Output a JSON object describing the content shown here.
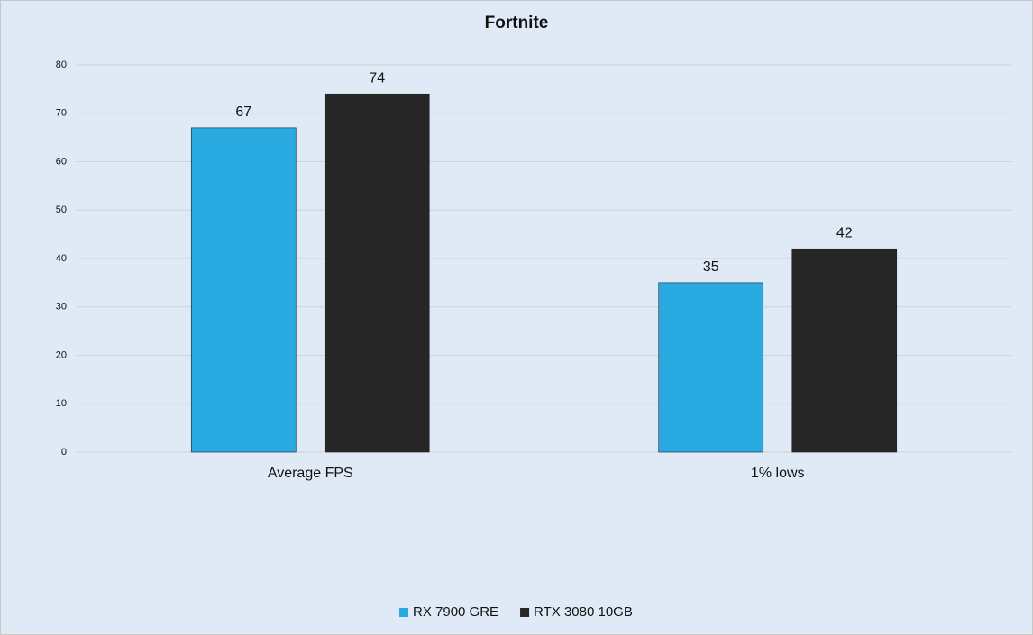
{
  "chart_data": {
    "type": "bar",
    "title": "Fortnite",
    "categories": [
      "Average FPS",
      "1% lows"
    ],
    "series": [
      {
        "name": "RX 7900 GRE",
        "color": "#29abe2",
        "values": [
          67,
          35
        ]
      },
      {
        "name": "RTX 3080 10GB",
        "color": "#262626",
        "values": [
          74,
          42
        ]
      }
    ],
    "ylim": [
      0,
      80
    ],
    "yticks": [
      0,
      10,
      20,
      30,
      40,
      50,
      60,
      70,
      80
    ],
    "grid": true,
    "legend": "bottom"
  }
}
